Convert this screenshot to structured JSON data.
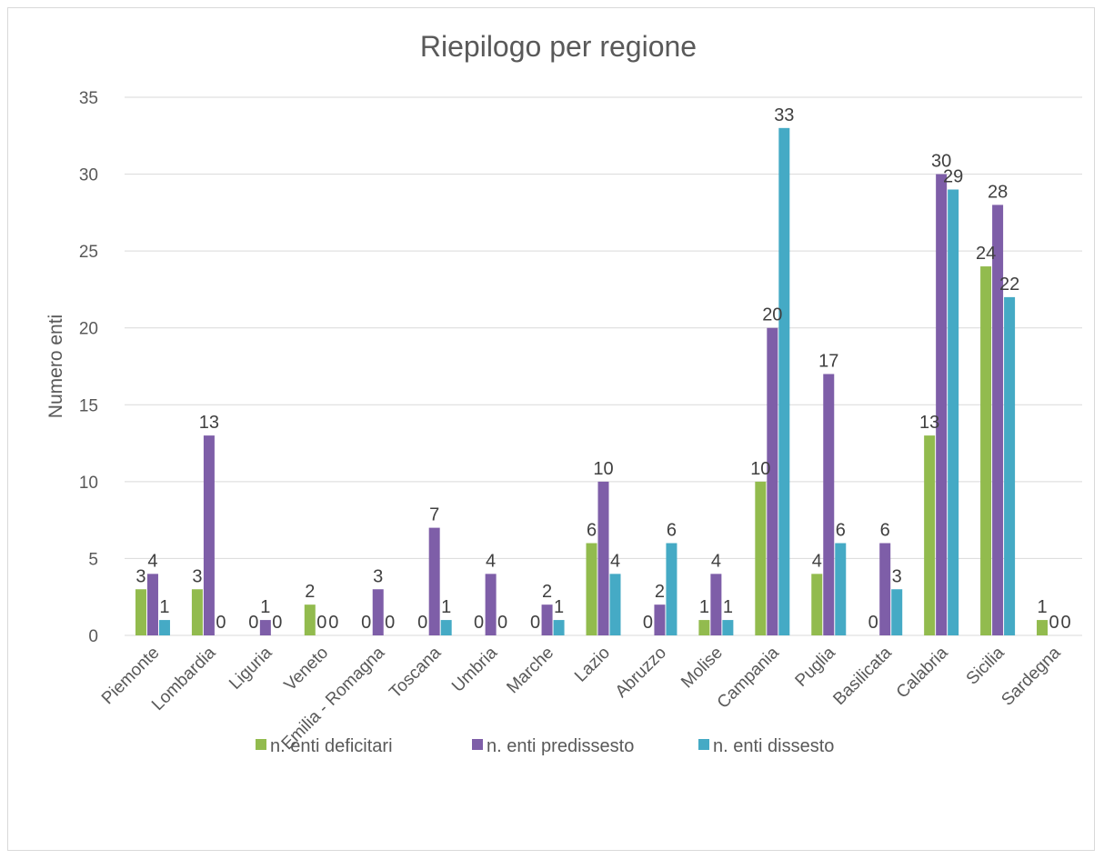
{
  "chart_data": {
    "type": "bar",
    "title": "Riepilogo per regione",
    "ylabel": "Numero enti",
    "xlabel": "",
    "ylim": [
      0,
      35
    ],
    "ytick_step": 5,
    "grid": true,
    "legend_position": "bottom",
    "categories": [
      "Piemonte",
      "Lombardia",
      "Liguria",
      "Veneto",
      "Emilia - Romagna",
      "Toscana",
      "Umbria",
      "Marche",
      "Lazio",
      "Abruzzo",
      "Molise",
      "Campania",
      "Puglia",
      "Basilicata",
      "Calabria",
      "Sicilia",
      "Sardegna"
    ],
    "series": [
      {
        "name": "n. enti deficitari",
        "color": "#92bb4e",
        "values": [
          3,
          3,
          0,
          2,
          0,
          0,
          0,
          0,
          6,
          0,
          1,
          10,
          4,
          0,
          13,
          24,
          1
        ]
      },
      {
        "name": "n. enti predissesto",
        "color": "#7e5ea8",
        "values": [
          4,
          13,
          1,
          0,
          3,
          7,
          4,
          2,
          10,
          2,
          4,
          20,
          17,
          6,
          30,
          28,
          0
        ]
      },
      {
        "name": "n. enti dissesto",
        "color": "#45aac5",
        "values": [
          1,
          0,
          0,
          0,
          0,
          1,
          0,
          1,
          4,
          6,
          1,
          33,
          6,
          3,
          29,
          22,
          0
        ]
      }
    ]
  }
}
